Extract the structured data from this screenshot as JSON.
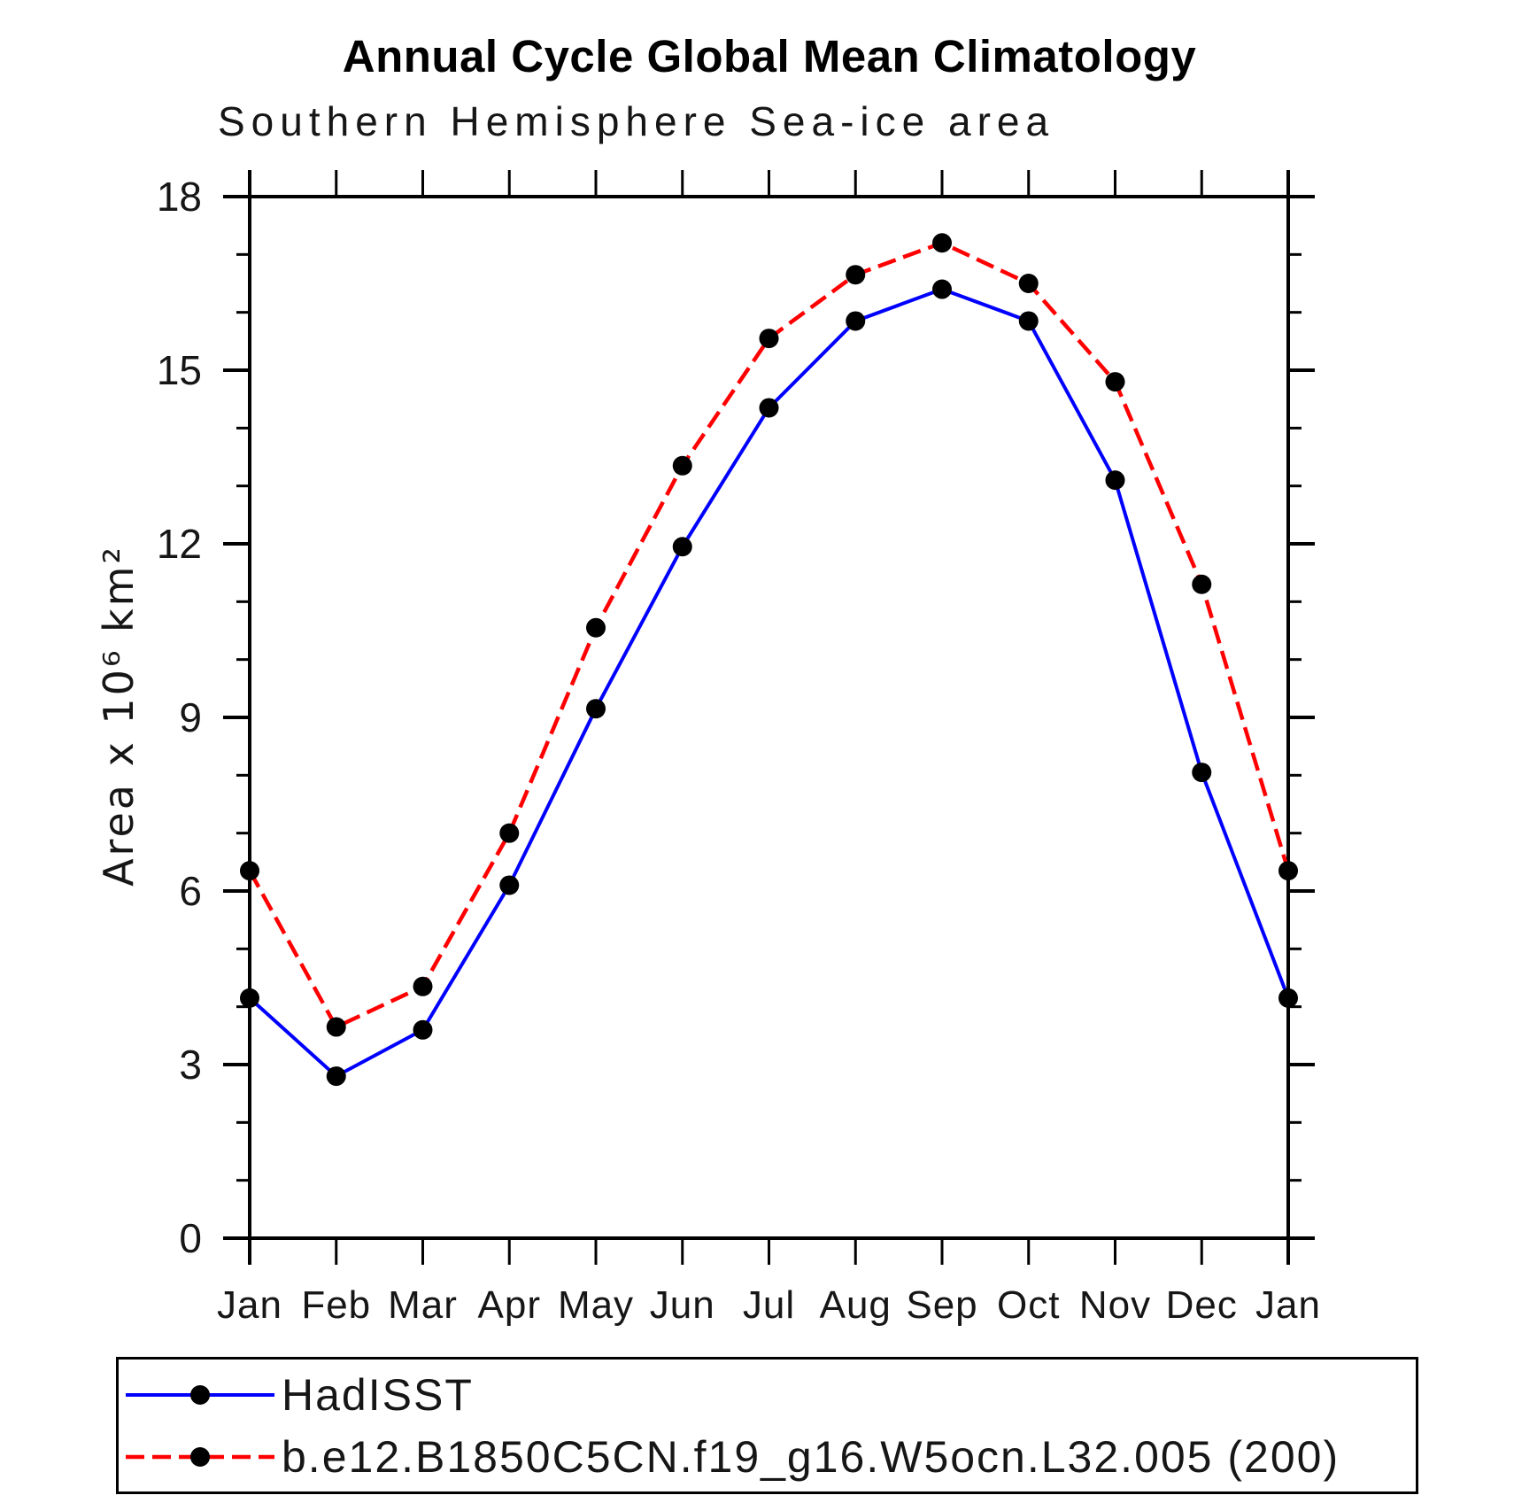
{
  "page": {
    "background": "#ffffff"
  },
  "chart_data": {
    "type": "line",
    "title": "Annual Cycle Global Mean Climatology",
    "subtitle": "Southern Hemisphere Sea-ice area",
    "categories": [
      "Jan",
      "Feb",
      "Mar",
      "Apr",
      "May",
      "Jun",
      "Jul",
      "Aug",
      "Sep",
      "Oct",
      "Nov",
      "Dec",
      "Jan"
    ],
    "series": [
      {
        "name": "HadISST",
        "color": "#0000ff",
        "line_style": "solid",
        "line_width": 4,
        "marker": "filled-circle",
        "marker_color": "#000000",
        "values": [
          4.15,
          2.8,
          3.6,
          6.1,
          9.15,
          11.95,
          14.35,
          15.85,
          16.4,
          15.85,
          13.1,
          8.05,
          4.15
        ]
      },
      {
        "name": "b.e12.B1850C5CN.f19_g16.W5ocn.L32.005 (200)",
        "color": "#ff0000",
        "line_style": "dashed",
        "line_width": 4.5,
        "marker": "filled-circle",
        "marker_color": "#000000",
        "values": [
          6.35,
          3.65,
          4.35,
          7.0,
          10.55,
          13.35,
          15.55,
          16.65,
          17.2,
          16.5,
          14.8,
          11.3,
          6.35
        ]
      }
    ],
    "xlabel": "",
    "ylabel": "Area x 10⁶ km²",
    "ylim": [
      0,
      18
    ],
    "yticks_major": [
      0,
      3,
      6,
      9,
      12,
      15,
      18
    ],
    "ytick_minor_interval": 1,
    "grid": false,
    "legend_position": "bottom-left-box",
    "frame_color": "#000000"
  }
}
